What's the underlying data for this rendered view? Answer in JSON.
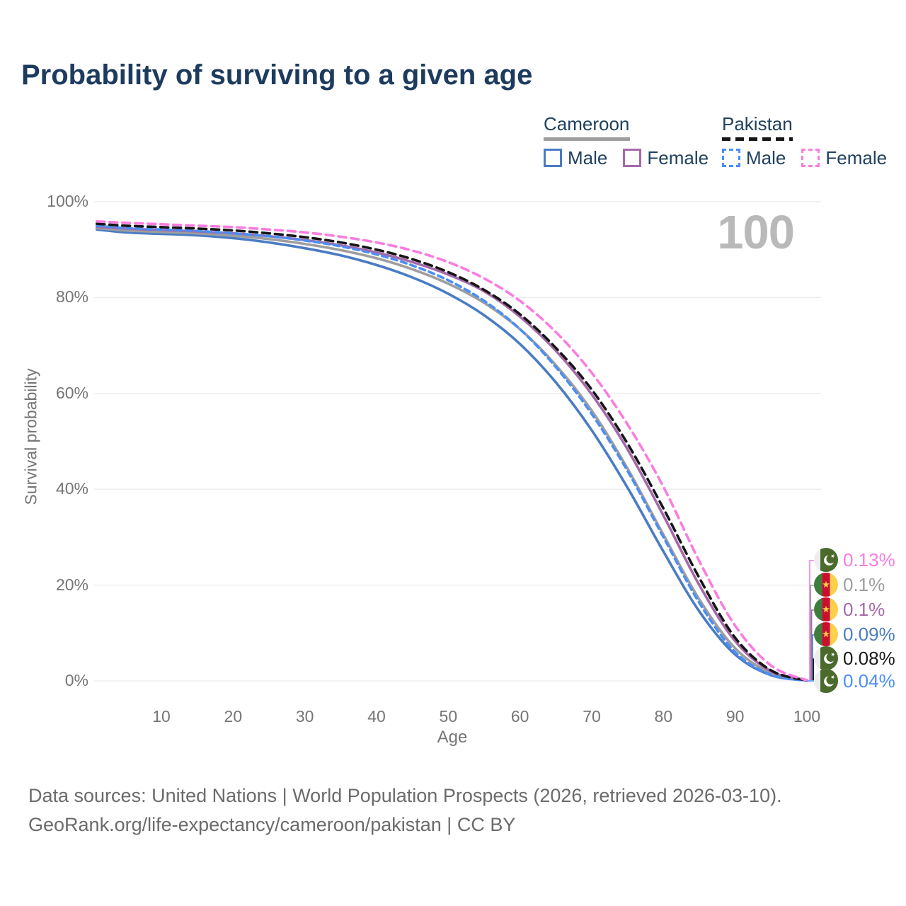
{
  "page": {
    "title": "Probability of surviving to a given age"
  },
  "watermark": "100",
  "legend": {
    "groups": [
      {
        "title": "Cameroon",
        "line_style": "solid",
        "items": [
          {
            "label": "Male",
            "color": "#4a7cc4",
            "dashed": false
          },
          {
            "label": "Female",
            "color": "#a569a9",
            "dashed": false
          }
        ]
      },
      {
        "title": "Pakistan",
        "line_style": "dashed",
        "items": [
          {
            "label": "Male",
            "color": "#4b8ef5",
            "dashed": true
          },
          {
            "label": "Female",
            "color": "#fb7ce0",
            "dashed": true
          }
        ]
      }
    ]
  },
  "chart_data": {
    "type": "line",
    "title": "Probability of surviving to a given age",
    "xlabel": "Age",
    "ylabel": "Survival probability",
    "xlim": [
      0,
      102
    ],
    "ylim": [
      0,
      100
    ],
    "grid": "horizontal-only",
    "legend_position": "top-right",
    "x_ticks": [
      {
        "value": 10,
        "label": "10"
      },
      {
        "value": 20,
        "label": "20"
      },
      {
        "value": 30,
        "label": "30"
      },
      {
        "value": 40,
        "label": "40"
      },
      {
        "value": 50,
        "label": "50"
      },
      {
        "value": 60,
        "label": "60"
      },
      {
        "value": 70,
        "label": "70"
      },
      {
        "value": 80,
        "label": "80"
      },
      {
        "value": 90,
        "label": "90"
      },
      {
        "value": 100,
        "label": "100"
      }
    ],
    "y_ticks": [
      {
        "value": 0,
        "label": "0%"
      },
      {
        "value": 20,
        "label": "20%"
      },
      {
        "value": 40,
        "label": "40%"
      },
      {
        "value": 60,
        "label": "60%"
      },
      {
        "value": 80,
        "label": "80%"
      },
      {
        "value": 100,
        "label": "100%"
      }
    ],
    "x": [
      1,
      5,
      10,
      15,
      20,
      25,
      30,
      35,
      40,
      45,
      50,
      55,
      60,
      65,
      70,
      75,
      80,
      85,
      90,
      95,
      100
    ],
    "series": [
      {
        "name": "Cameroon Male",
        "country": "Cameroon",
        "sex": "male",
        "color": "#4a7cc4",
        "dash": "",
        "values": [
          94.2,
          93.6,
          93.3,
          93.0,
          92.4,
          91.5,
          90.3,
          88.8,
          86.8,
          84.2,
          80.8,
          76.3,
          70.3,
          62.3,
          52.3,
          40.3,
          27.0,
          14.5,
          5.5,
          1.2,
          0.09
        ]
      },
      {
        "name": "Cameroon",
        "country": "Cameroon",
        "sex": "both",
        "color": "#9e9e9e",
        "dash": "",
        "values": [
          94.5,
          94.0,
          93.7,
          93.4,
          92.9,
          92.2,
          91.2,
          89.9,
          88.2,
          85.9,
          82.9,
          78.9,
          73.4,
          65.9,
          56.4,
          44.3,
          30.5,
          17.0,
          6.8,
          1.6,
          0.1
        ]
      },
      {
        "name": "Cameroon Female",
        "country": "Cameroon",
        "sex": "female",
        "color": "#a569a9",
        "dash": "",
        "values": [
          94.8,
          94.4,
          94.1,
          93.8,
          93.4,
          92.8,
          92.0,
          90.9,
          89.4,
          87.4,
          84.8,
          81.3,
          76.0,
          68.9,
          59.8,
          48.3,
          34.5,
          20.0,
          8.3,
          2.0,
          0.1
        ]
      },
      {
        "name": "Pakistan Male",
        "country": "Pakistan",
        "sex": "male",
        "color": "#4b8ef5",
        "dash": "8 6",
        "values": [
          95.0,
          94.5,
          94.2,
          93.9,
          93.4,
          92.8,
          91.9,
          90.7,
          89.0,
          86.7,
          83.6,
          79.3,
          73.4,
          65.5,
          55.7,
          43.8,
          30.0,
          16.3,
          6.0,
          1.3,
          0.04
        ]
      },
      {
        "name": "Pakistan",
        "country": "Pakistan",
        "sex": "both",
        "color": "#161616",
        "dash": "11 7",
        "values": [
          95.4,
          95.0,
          94.7,
          94.4,
          94.0,
          93.4,
          92.6,
          91.5,
          90.0,
          88.0,
          85.3,
          81.6,
          76.5,
          69.5,
          60.8,
          49.5,
          36.0,
          21.5,
          9.0,
          2.2,
          0.08
        ]
      },
      {
        "name": "Pakistan Female",
        "country": "Pakistan",
        "sex": "female",
        "color": "#fb7ce0",
        "dash": "11 7",
        "values": [
          95.9,
          95.6,
          95.3,
          95.0,
          94.7,
          94.2,
          93.6,
          92.7,
          91.5,
          89.8,
          87.4,
          84.0,
          79.3,
          72.8,
          64.3,
          53.5,
          40.5,
          25.0,
          11.5,
          3.2,
          0.13
        ]
      }
    ],
    "end_labels": [
      {
        "flag": "pakistan",
        "text": "0.13%",
        "color": "#fb7ce0"
      },
      {
        "flag": "cameroon",
        "text": "0.1%",
        "color": "#9e9e9e"
      },
      {
        "flag": "cameroon",
        "text": "0.1%",
        "color": "#a569a9"
      },
      {
        "flag": "cameroon",
        "text": "0.09%",
        "color": "#4a7cc4"
      },
      {
        "flag": "pakistan",
        "text": "0.08%",
        "color": "#1a1a1a"
      },
      {
        "flag": "pakistan",
        "text": "0.04%",
        "color": "#4b8ef5"
      }
    ]
  },
  "footer": {
    "line1": "Data sources: United Nations | World Population Prospects (2026, retrieved 2026-03-10).",
    "line2": "GeoRank.org/life-expectancy/cameroon/pakistan | CC BY"
  }
}
